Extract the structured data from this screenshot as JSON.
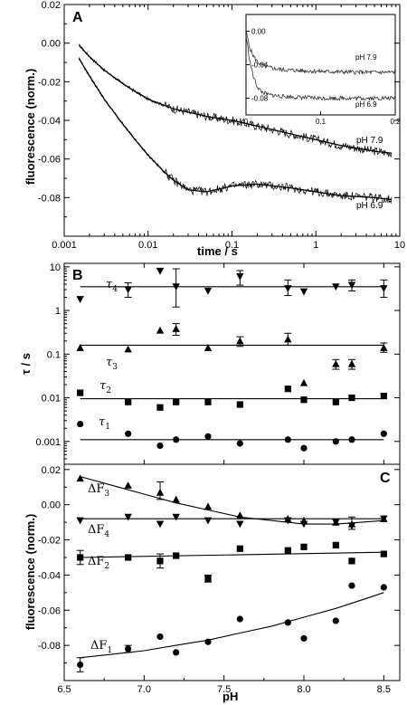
{
  "chart_data": [
    {
      "panel": "A",
      "type": "line",
      "xscale": "log",
      "xlabel": "time / s",
      "ylabel": "fluorescence (norm.)",
      "xlim": [
        0.001,
        10
      ],
      "ylim": [
        -0.1,
        0.02
      ],
      "xticks": [
        "0.001",
        "0.01",
        "0.1",
        "1",
        "10"
      ],
      "yticks": [
        "0.02",
        "0.00",
        "-0.02",
        "-0.04",
        "-0.06",
        "-0.08"
      ],
      "series": [
        {
          "name": "pH 7.9",
          "x": [
            0.0015,
            0.002,
            0.003,
            0.005,
            0.007,
            0.01,
            0.02,
            0.05,
            0.1,
            0.2,
            0.5,
            1,
            2,
            5,
            8
          ],
          "y": [
            -0.001,
            -0.007,
            -0.014,
            -0.021,
            -0.025,
            -0.029,
            -0.034,
            -0.038,
            -0.04,
            -0.043,
            -0.047,
            -0.05,
            -0.053,
            -0.056,
            -0.057
          ]
        },
        {
          "name": "pH 6.9",
          "x": [
            0.0015,
            0.002,
            0.003,
            0.005,
            0.007,
            0.01,
            0.015,
            0.02,
            0.03,
            0.05,
            0.1,
            0.2,
            0.5,
            1,
            2,
            5,
            8
          ],
          "y": [
            -0.008,
            -0.017,
            -0.029,
            -0.042,
            -0.05,
            -0.058,
            -0.066,
            -0.071,
            -0.076,
            -0.077,
            -0.074,
            -0.073,
            -0.075,
            -0.077,
            -0.079,
            -0.08,
            -0.081
          ]
        }
      ],
      "inset": {
        "xlim": [
          0,
          0.2
        ],
        "ylim": [
          -0.1,
          0.02
        ],
        "xticks": [
          "0",
          "0.1",
          "0.2"
        ],
        "yticks": [
          "0.00",
          "-0.04",
          "-0.08"
        ],
        "series": [
          {
            "name": "pH 7.9",
            "x": [
              0.0,
              0.005,
              0.01,
              0.015,
              0.02,
              0.03,
              0.04,
              0.05,
              0.07,
              0.1,
              0.15,
              0.2
            ],
            "y": [
              0.0,
              -0.02,
              -0.03,
              -0.036,
              -0.04,
              -0.043,
              -0.045,
              -0.046,
              -0.047,
              -0.048,
              -0.049,
              -0.049
            ]
          },
          {
            "name": "pH 6.9",
            "x": [
              0.0,
              0.005,
              0.01,
              0.015,
              0.02,
              0.03,
              0.04,
              0.05,
              0.07,
              0.1,
              0.15,
              0.2
            ],
            "y": [
              -0.005,
              -0.035,
              -0.055,
              -0.066,
              -0.072,
              -0.076,
              -0.077,
              -0.078,
              -0.079,
              -0.08,
              -0.08,
              -0.08
            ]
          }
        ]
      }
    },
    {
      "panel": "B",
      "type": "scatter",
      "yscale": "log",
      "ylabel": "τ / s",
      "xlim": [
        6.5,
        8.6
      ],
      "ylim": [
        0.0003,
        12
      ],
      "yticks": [
        "10",
        "1",
        "0.1",
        "0.01",
        "0.001"
      ],
      "series": [
        {
          "name": "τ4",
          "marker": "triangle-down",
          "x": [
            6.6,
            6.9,
            7.1,
            7.2,
            7.4,
            7.6,
            7.9,
            8.0,
            8.2,
            8.3,
            8.5
          ],
          "y": [
            1.8,
            3.0,
            8.0,
            3.5,
            2.8,
            6.0,
            3.2,
            2.7,
            3.5,
            3.8,
            3.2
          ],
          "fit": 3.5
        },
        {
          "name": "τ3",
          "marker": "triangle-up",
          "x": [
            6.6,
            6.9,
            7.1,
            7.2,
            7.4,
            7.6,
            7.9,
            8.0,
            8.2,
            8.3,
            8.5
          ],
          "y": [
            0.14,
            0.13,
            0.35,
            0.38,
            0.14,
            0.2,
            0.22,
            0.022,
            0.06,
            0.06,
            0.14
          ],
          "fit": 0.16
        },
        {
          "name": "τ2",
          "marker": "square",
          "x": [
            6.6,
            6.9,
            7.1,
            7.2,
            7.4,
            7.6,
            7.9,
            8.0,
            8.2,
            8.3,
            8.5
          ],
          "y": [
            0.013,
            0.008,
            0.006,
            0.008,
            0.008,
            0.007,
            0.016,
            0.009,
            0.008,
            0.01,
            0.011
          ],
          "fit": 0.0095
        },
        {
          "name": "τ1",
          "marker": "circle",
          "x": [
            6.6,
            6.9,
            7.1,
            7.2,
            7.4,
            7.6,
            7.9,
            8.0,
            8.2,
            8.3,
            8.5
          ],
          "y": [
            0.0025,
            0.0015,
            0.0008,
            0.0011,
            0.0013,
            0.0009,
            0.0011,
            0.0007,
            0.001,
            0.0011,
            0.0015
          ],
          "fit": 0.0011
        }
      ]
    },
    {
      "panel": "C",
      "type": "scatter",
      "xlabel": "pH",
      "ylabel": "fluorescence (norm.)",
      "xlim": [
        6.5,
        8.6
      ],
      "ylim": [
        -0.1,
        0.023
      ],
      "xticks": [
        "6.5",
        "7.0",
        "7.5",
        "8.0",
        "8.5"
      ],
      "yticks": [
        "0.02",
        "0.00",
        "-0.02",
        "-0.04",
        "-0.06",
        "-0.08"
      ],
      "series": [
        {
          "name": "ΔF3",
          "marker": "triangle-up",
          "x": [
            6.6,
            6.9,
            7.1,
            7.2,
            7.4,
            7.6,
            7.9,
            8.0,
            8.2,
            8.3,
            8.5
          ],
          "y": [
            0.015,
            0.011,
            0.007,
            0.003,
            -0.001,
            -0.006,
            -0.008,
            -0.009,
            -0.01,
            -0.011,
            -0.008
          ],
          "fit_x": [
            6.6,
            6.8,
            7.0,
            7.2,
            7.4,
            7.6,
            7.8,
            8.0,
            8.2,
            8.5
          ],
          "fit_y": [
            0.016,
            0.011,
            0.006,
            0.001,
            -0.003,
            -0.007,
            -0.009,
            -0.011,
            -0.011,
            -0.009
          ]
        },
        {
          "name": "ΔF4",
          "marker": "triangle-down",
          "x": [
            6.6,
            6.9,
            7.1,
            7.2,
            7.4,
            7.6,
            7.9,
            8.0,
            8.2,
            8.3,
            8.5
          ],
          "y": [
            -0.009,
            -0.007,
            -0.011,
            -0.007,
            -0.009,
            -0.011,
            -0.009,
            -0.011,
            -0.01,
            -0.012,
            -0.008
          ],
          "fit_x": [
            6.6,
            8.5
          ],
          "fit_y": [
            -0.008,
            -0.008
          ]
        },
        {
          "name": "ΔF2",
          "marker": "square",
          "x": [
            6.6,
            6.9,
            7.1,
            7.2,
            7.4,
            7.6,
            7.9,
            8.0,
            8.2,
            8.3,
            8.5
          ],
          "y": [
            -0.03,
            -0.03,
            -0.032,
            -0.029,
            -0.042,
            -0.025,
            -0.026,
            -0.024,
            -0.023,
            -0.032,
            -0.028
          ],
          "fit_x": [
            6.6,
            8.5
          ],
          "fit_y": [
            -0.03,
            -0.027
          ]
        },
        {
          "name": "ΔF1",
          "marker": "circle",
          "x": [
            6.6,
            6.9,
            7.1,
            7.2,
            7.4,
            7.6,
            7.9,
            8.0,
            8.2,
            8.3,
            8.5
          ],
          "y": [
            -0.091,
            -0.082,
            -0.075,
            -0.084,
            -0.078,
            -0.065,
            -0.067,
            -0.076,
            -0.066,
            -0.046,
            -0.047
          ],
          "fit_x": [
            6.6,
            6.8,
            7.0,
            7.2,
            7.4,
            7.6,
            7.8,
            8.0,
            8.2,
            8.4,
            8.5
          ],
          "fit_y": [
            -0.087,
            -0.085,
            -0.083,
            -0.08,
            -0.077,
            -0.073,
            -0.069,
            -0.064,
            -0.059,
            -0.053,
            -0.05
          ]
        }
      ]
    }
  ]
}
